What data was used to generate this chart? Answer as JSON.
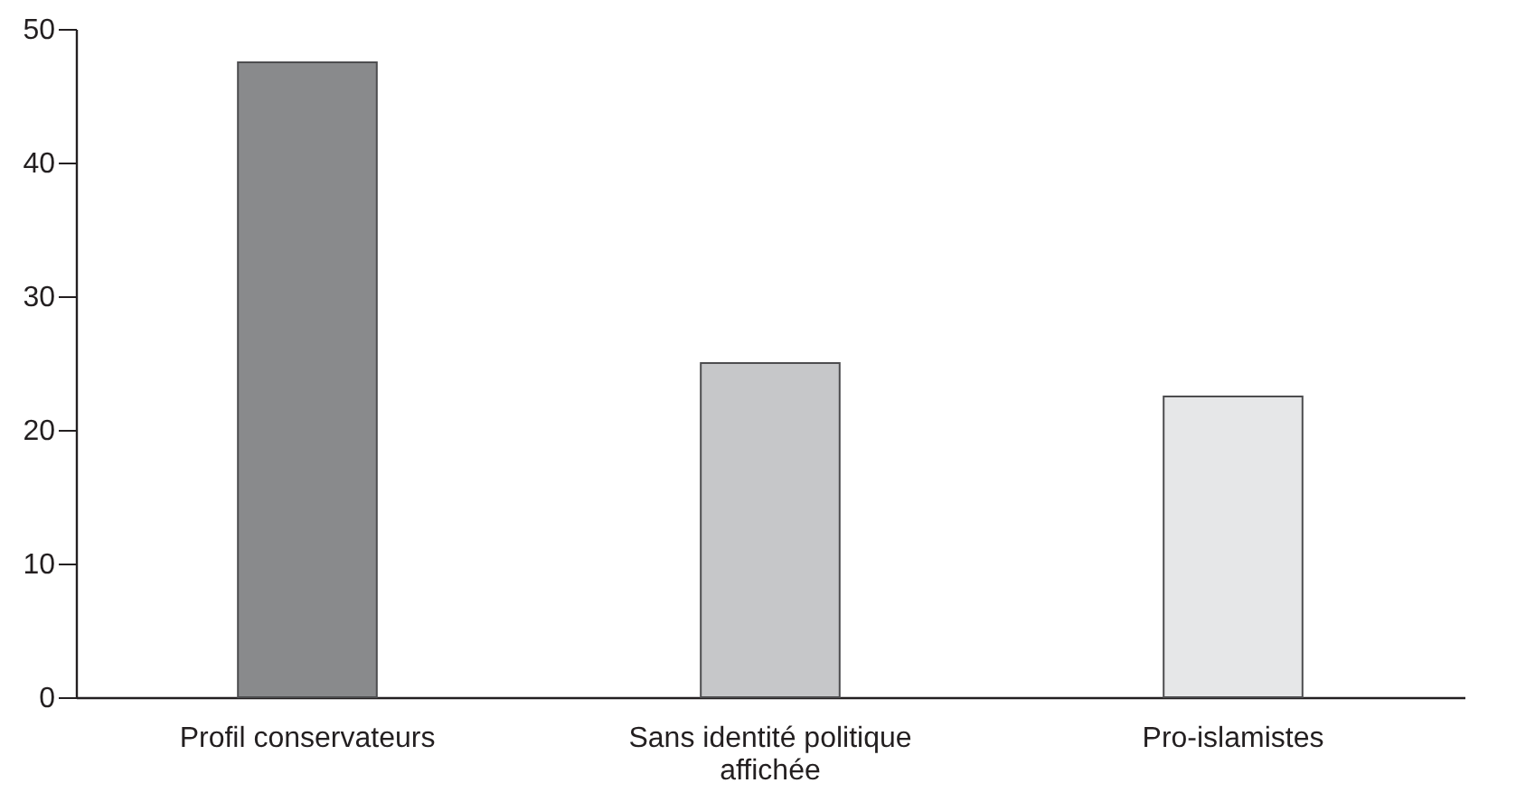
{
  "chart_data": {
    "type": "bar",
    "categories": [
      "Profil conservateurs",
      "Sans identité politique affichée",
      "Pro-islamistes"
    ],
    "values": [
      47.5,
      25,
      22.5
    ],
    "colors": [
      "#898a8c",
      "#c6c7c9",
      "#e6e7e8"
    ],
    "ylim": [
      0,
      50
    ],
    "yticks": [
      0,
      10,
      20,
      30,
      40,
      50
    ]
  }
}
